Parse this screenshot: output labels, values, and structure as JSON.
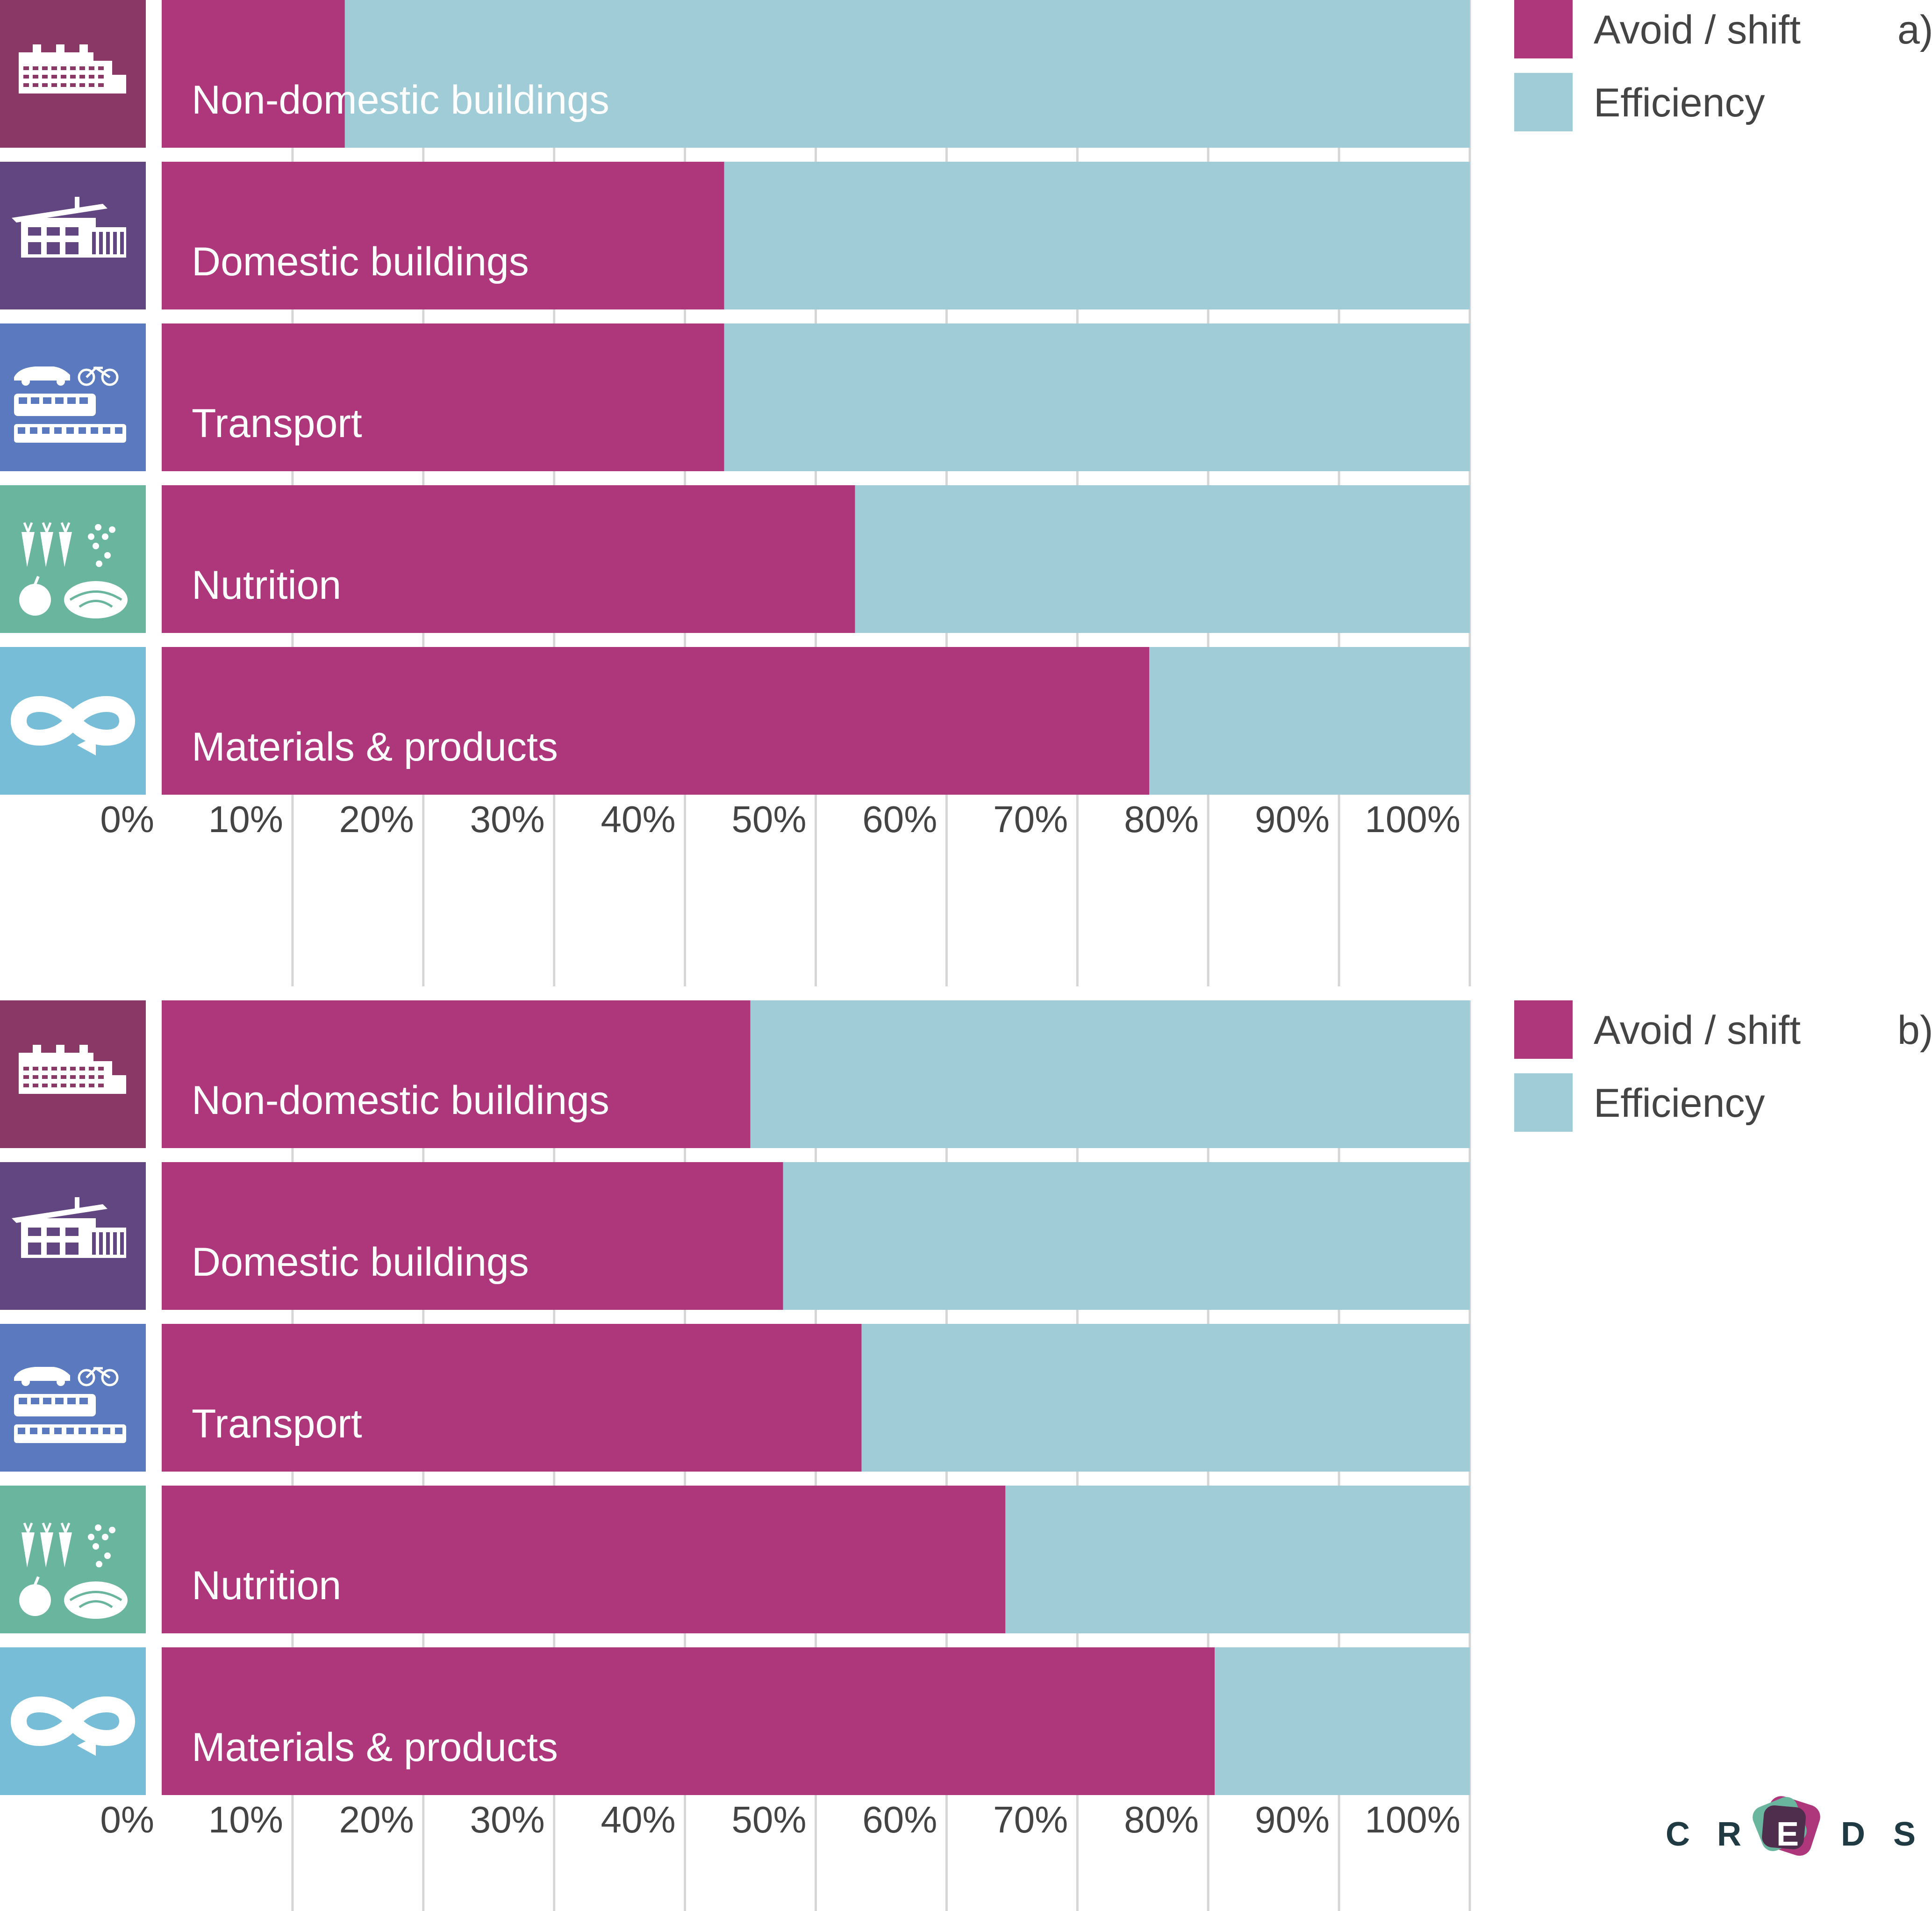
{
  "colors": {
    "avoid": "#ae367a",
    "efficiency": "#a0ccd7",
    "gridline": "#d6d6d6",
    "axis_text": "#444444",
    "label_text": "#ffffff",
    "sector_tiles": {
      "non_domestic": "#8a3966",
      "domestic": "#614682",
      "transport": "#5b79bf",
      "nutrition": "#6ab59e",
      "materials": "#78bdd7"
    },
    "logo_text": "#203a44",
    "logo_mark": [
      "#ae367a",
      "#6ab59e",
      "#4f2d4c"
    ]
  },
  "logo": {
    "letters": [
      "C",
      "R",
      "E",
      "D",
      "S"
    ]
  },
  "chart_data": [
    {
      "type": "bar",
      "orientation": "horizontal",
      "stacked": true,
      "panel_label": "a)",
      "categories": [
        "Non-domestic buildings",
        "Domestic buildings",
        "Transport",
        "Nutrition",
        "Materials & products"
      ],
      "category_icons": [
        "factory-icon",
        "house-icon",
        "transport-icon",
        "food-icon",
        "circular-economy-icon"
      ],
      "series": [
        {
          "name": "Avoid / shift",
          "values": [
            14,
            43,
            43,
            53,
            75.5
          ]
        },
        {
          "name": "Efficiency",
          "values": [
            86,
            57,
            57,
            47,
            24.5
          ]
        }
      ],
      "xlim": [
        0,
        100
      ],
      "ticks": [
        "0%",
        "10%",
        "20%",
        "30%",
        "40%",
        "50%",
        "60%",
        "70%",
        "80%",
        "90%",
        "100%"
      ],
      "legend_position": "right"
    },
    {
      "type": "bar",
      "orientation": "horizontal",
      "stacked": true,
      "panel_label": "b)",
      "categories": [
        "Non-domestic buildings",
        "Domestic buildings",
        "Transport",
        "Nutrition",
        "Materials & products"
      ],
      "category_icons": [
        "factory-icon",
        "house-icon",
        "transport-icon",
        "food-icon",
        "circular-economy-icon"
      ],
      "series": [
        {
          "name": "Avoid / shift",
          "values": [
            45,
            47.5,
            53.5,
            64.5,
            80.5
          ]
        },
        {
          "name": "Efficiency",
          "values": [
            55,
            52.5,
            46.5,
            35.5,
            19.5
          ]
        }
      ],
      "xlim": [
        0,
        100
      ],
      "ticks": [
        "0%",
        "10%",
        "20%",
        "30%",
        "40%",
        "50%",
        "60%",
        "70%",
        "80%",
        "90%",
        "100%"
      ],
      "legend_position": "right"
    }
  ]
}
